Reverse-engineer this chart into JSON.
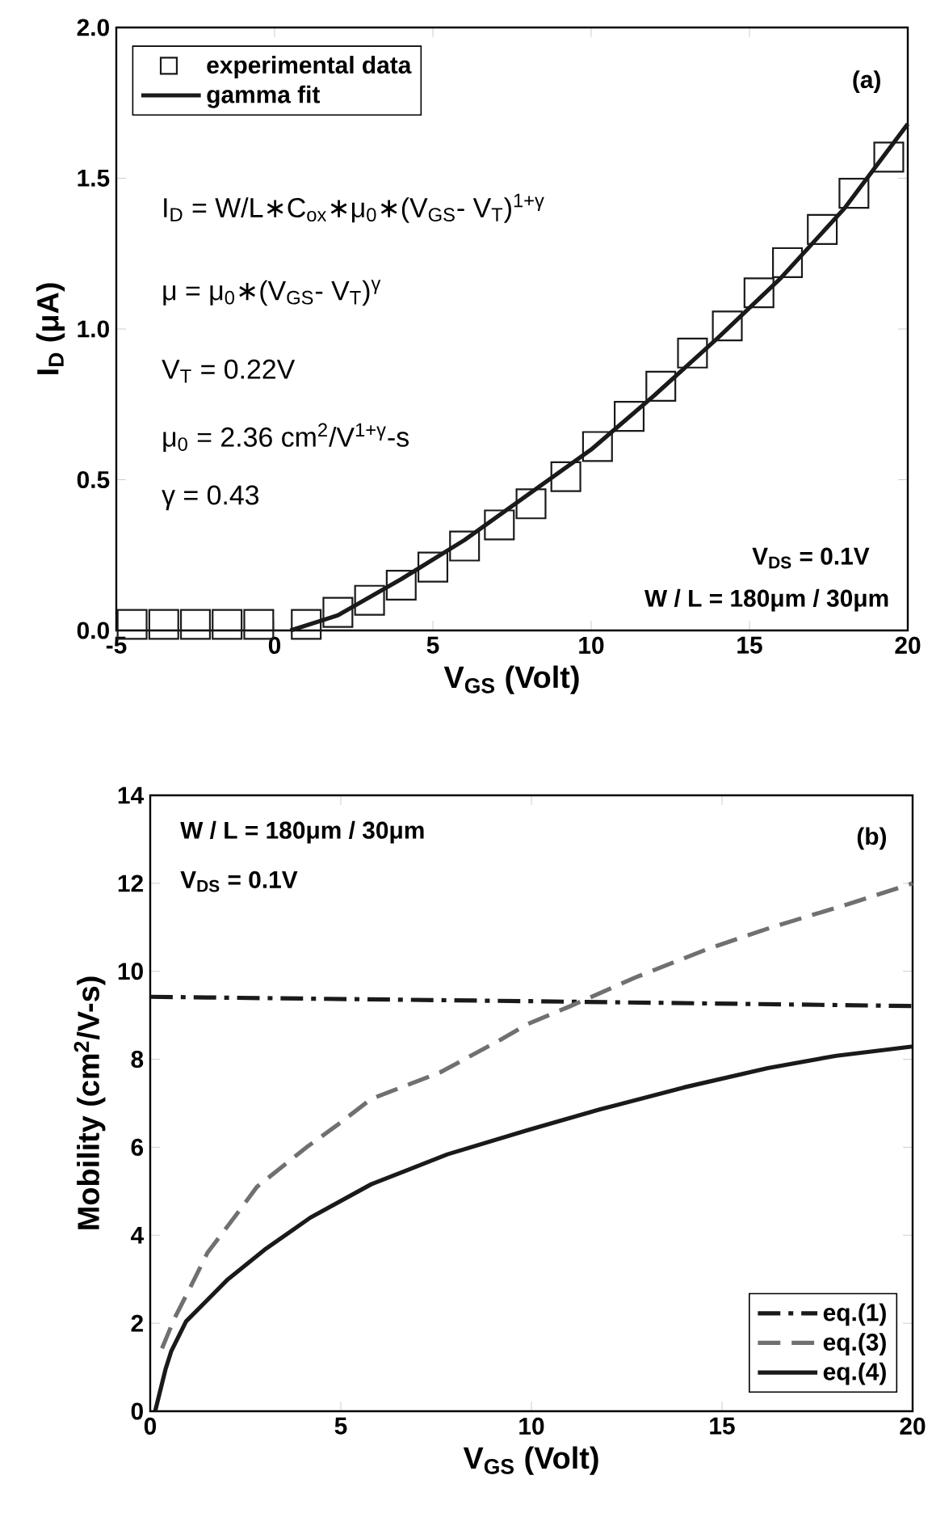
{
  "chart_data": [
    {
      "type": "line",
      "xlabel": "V$_{GS}$ (Volt)",
      "ylabel": "I$_{D}$ (μA)",
      "xlim": [
        -5,
        20
      ],
      "ylim": [
        0,
        2
      ],
      "xticks": [
        -5,
        0,
        5,
        10,
        15,
        20
      ],
      "yticks": [
        {
          "value": 0,
          "label": "0.0"
        },
        {
          "value": 0.5,
          "label": "0.5"
        },
        {
          "value": 1,
          "label": "1.0"
        },
        {
          "value": 1.5,
          "label": "1.5"
        },
        {
          "value": 2,
          "label": "2.0"
        }
      ],
      "legend": "top left",
      "series": [
        {
          "name": "experimental data",
          "type": "scatter",
          "marker": "square",
          "color": "#1a1a1a",
          "x": [
            -4.5,
            -3.5,
            -2.5,
            -1.5,
            -0.5,
            1,
            2,
            3,
            4,
            5,
            6,
            7.1,
            8.1,
            9.2,
            10.2,
            11.2,
            12.2,
            13.2,
            14.3,
            15.3,
            16.2,
            17.3,
            18.3,
            19.4
          ],
          "values": [
            0.02,
            0.02,
            0.02,
            0.02,
            0.02,
            0.02,
            0.06,
            0.1,
            0.15,
            0.21,
            0.28,
            0.35,
            0.42,
            0.51,
            0.61,
            0.71,
            0.81,
            0.92,
            1.01,
            1.12,
            1.22,
            1.33,
            1.45,
            1.57
          ]
        },
        {
          "name": "gamma fit",
          "type": "line",
          "line_style": "solid",
          "color": "#1a1a1a",
          "x": [
            0.5,
            2,
            4,
            6,
            8,
            10,
            12,
            14,
            16,
            18,
            20
          ],
          "values": [
            0,
            0.05,
            0.17,
            0.3,
            0.45,
            0.6,
            0.78,
            0.97,
            1.17,
            1.4,
            1.68
          ]
        }
      ],
      "annotations": [
        "I$_{D}$ = W/L∗C$_{ox}$∗μ$_{0}$∗(V$_{GS}$- V$_{T}$)$^{1+γ}$",
        "μ = μ$_{0}$∗(V$_{GS}$- V$_{T}$)$^{γ}$",
        "V$_{T}$ = 0.22V",
        "μ$_{0}$ = 2.36 cm$^{2}$/V$^{1+γ}$-s",
        "γ = 0.43",
        "V$_{DS}$ = 0.1V",
        "W / L = 180μm / 30μm",
        "(a)"
      ]
    },
    {
      "type": "line",
      "xlabel": "V$_{GS}$ (Volt)",
      "ylabel": "Mobility (cm$^{2}$/V-s)",
      "xlim": [
        0,
        20
      ],
      "ylim": [
        0,
        14
      ],
      "xticks": [
        0,
        5,
        10,
        15,
        20
      ],
      "yticks": [
        0,
        2,
        4,
        6,
        8,
        10,
        12,
        14
      ],
      "legend": "bottom right",
      "series": [
        {
          "name": "eq.(1)",
          "type": "line",
          "line_style": "dashdot",
          "color": "#1a1a1a",
          "x": [
            0,
            10,
            20
          ],
          "values": [
            9.42,
            9.32,
            9.21
          ]
        },
        {
          "name": "eq.(3)",
          "type": "line",
          "line_style": "dashed",
          "color": "#707070",
          "x": [
            0.31,
            0.63,
            1.1,
            1.5,
            2.2,
            2.8,
            4.1,
            4.9,
            5.8,
            7.6,
            9.1,
            9.9,
            11,
            12.7,
            14.6,
            16.3,
            18.4,
            20
          ],
          "values": [
            1.43,
            2.1,
            2.9,
            3.6,
            4.4,
            5.1,
            6.0,
            6.5,
            7.1,
            7.7,
            8.4,
            8.8,
            9.2,
            9.85,
            10.5,
            11.0,
            11.55,
            12.0
          ]
        },
        {
          "name": "eq.(4)",
          "type": "line",
          "line_style": "solid",
          "color": "#1a1a1a",
          "x": [
            0.13,
            0.4,
            0.55,
            0.94,
            2.04,
            3.0,
            4.2,
            5.8,
            7.8,
            9.9,
            11.8,
            14,
            16.2,
            18,
            20
          ],
          "values": [
            0,
            0.95,
            1.36,
            2.04,
            3.0,
            3.67,
            4.4,
            5.16,
            5.84,
            6.39,
            6.86,
            7.36,
            7.8,
            8.08,
            8.29
          ]
        }
      ],
      "annotations": [
        "W / L = 180μm / 30μm",
        "V$_{DS}$ = 0.1V",
        "(b)"
      ]
    }
  ]
}
